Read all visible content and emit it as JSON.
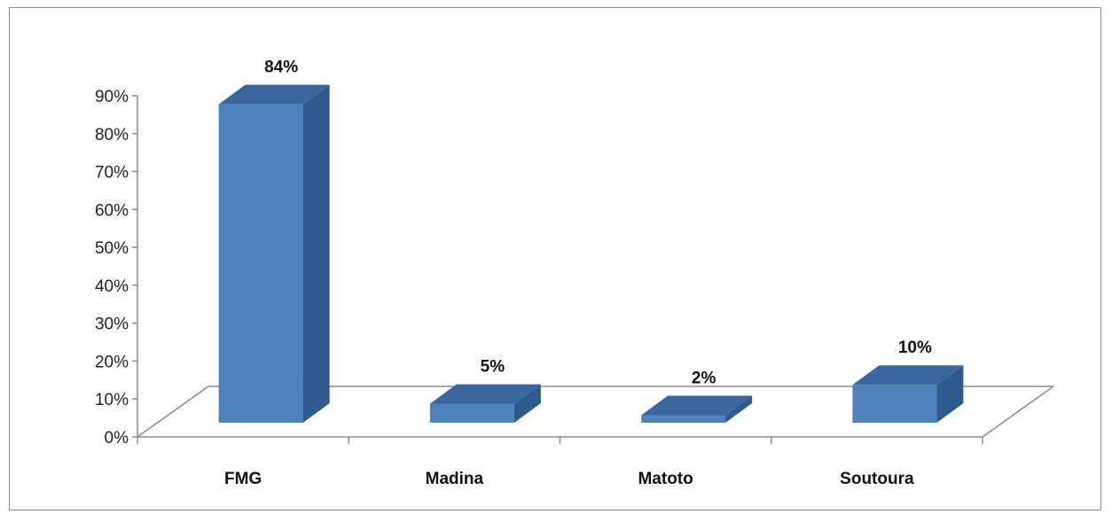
{
  "chart_data": {
    "type": "bar",
    "style": "3d-column",
    "categories": [
      "FMG",
      "Madina",
      "Matoto",
      "Soutoura"
    ],
    "values": [
      84,
      5,
      2,
      10
    ],
    "data_labels": [
      "84%",
      "5%",
      "2%",
      "10%"
    ],
    "y_ticks": [
      "0%",
      "10%",
      "20%",
      "30%",
      "40%",
      "50%",
      "60%",
      "70%",
      "80%",
      "90%"
    ],
    "ylim": [
      0,
      90
    ],
    "title": "",
    "xlabel": "",
    "ylabel": "",
    "grid": false,
    "legend": "none",
    "colors": {
      "bar_front": "#4f81bd",
      "bar_side": "#2f5a8e",
      "bar_top": "#3a679e",
      "axis": "#8c8c8c"
    }
  }
}
